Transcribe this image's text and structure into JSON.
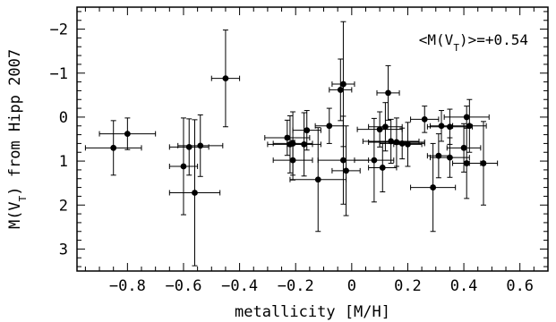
{
  "chart_data": {
    "type": "scatter",
    "xlabel": "metallicity [M/H]",
    "ylabel": "M(V_T) from Hipp 2007",
    "annotation": "<M(V_T)>=+0.54",
    "xlim": [
      -0.98,
      0.7
    ],
    "ylim": [
      3.5,
      -2.5
    ],
    "y_axis_inverted": true,
    "grid": false,
    "x_ticks": [
      -0.8,
      -0.6,
      -0.4,
      -0.2,
      0,
      0.2,
      0.4,
      0.6
    ],
    "x_tick_labels": [
      "−0.8",
      "−0.6",
      "−0.4",
      "−0.2",
      "0",
      "0.2",
      "0.4",
      "0.6"
    ],
    "y_ticks": [
      -2,
      -1,
      0,
      1,
      2,
      3
    ],
    "y_tick_labels": [
      "−2",
      "−1",
      "0",
      "1",
      "2",
      "3"
    ],
    "points": [
      {
        "x": -0.85,
        "y": 0.7,
        "xerr": 0.1,
        "yerr": 0.62
      },
      {
        "x": -0.8,
        "y": 0.38,
        "xerr": 0.1,
        "yerr": 0.36
      },
      {
        "x": -0.6,
        "y": 1.12,
        "xerr": 0.05,
        "yerr": 1.1
      },
      {
        "x": -0.58,
        "y": 0.68,
        "xerr": 0.07,
        "yerr": 0.64
      },
      {
        "x": -0.56,
        "y": 1.72,
        "xerr": 0.09,
        "yerr": 1.66
      },
      {
        "x": -0.54,
        "y": 0.65,
        "xerr": 0.08,
        "yerr": 0.7
      },
      {
        "x": -0.45,
        "y": -0.88,
        "xerr": 0.05,
        "yerr": 1.1
      },
      {
        "x": -0.23,
        "y": 0.47,
        "xerr": 0.08,
        "yerr": 0.4
      },
      {
        "x": -0.22,
        "y": 0.62,
        "xerr": 0.08,
        "yerr": 0.65
      },
      {
        "x": -0.21,
        "y": 0.6,
        "xerr": 0.07,
        "yerr": 0.72
      },
      {
        "x": -0.21,
        "y": 0.98,
        "xerr": 0.07,
        "yerr": 0.45
      },
      {
        "x": -0.17,
        "y": 0.62,
        "xerr": 0.06,
        "yerr": 0.72
      },
      {
        "x": -0.16,
        "y": 0.3,
        "xerr": 0.05,
        "yerr": 0.45
      },
      {
        "x": -0.12,
        "y": 1.42,
        "xerr": 0.1,
        "yerr": 1.18
      },
      {
        "x": -0.08,
        "y": 0.2,
        "xerr": 0.05,
        "yerr": 0.4
      },
      {
        "x": -0.04,
        "y": -0.62,
        "xerr": 0.04,
        "yerr": 0.7
      },
      {
        "x": -0.03,
        "y": -0.75,
        "xerr": 0.04,
        "yerr": 1.42
      },
      {
        "x": -0.03,
        "y": 0.98,
        "xerr": 0.09,
        "yerr": 1.0
      },
      {
        "x": -0.02,
        "y": 1.22,
        "xerr": 0.05,
        "yerr": 1.02
      },
      {
        "x": 0.08,
        "y": 0.98,
        "xerr": 0.07,
        "yerr": 0.95
      },
      {
        "x": 0.1,
        "y": 0.28,
        "xerr": 0.08,
        "yerr": 0.4
      },
      {
        "x": 0.11,
        "y": 1.15,
        "xerr": 0.05,
        "yerr": 0.55
      },
      {
        "x": 0.12,
        "y": 0.22,
        "xerr": 0.06,
        "yerr": 0.55
      },
      {
        "x": 0.13,
        "y": -0.55,
        "xerr": 0.04,
        "yerr": 0.62
      },
      {
        "x": 0.14,
        "y": 0.55,
        "xerr": 0.1,
        "yerr": 0.5
      },
      {
        "x": 0.16,
        "y": 0.57,
        "xerr": 0.1,
        "yerr": 0.55
      },
      {
        "x": 0.18,
        "y": 0.6,
        "xerr": 0.08,
        "yerr": 0.35
      },
      {
        "x": 0.2,
        "y": 0.62,
        "xerr": 0.05,
        "yerr": 0.5
      },
      {
        "x": 0.26,
        "y": 0.05,
        "xerr": 0.05,
        "yerr": 0.3
      },
      {
        "x": 0.29,
        "y": 1.6,
        "xerr": 0.08,
        "yerr": 1.0
      },
      {
        "x": 0.31,
        "y": 0.88,
        "xerr": 0.04,
        "yerr": 0.5
      },
      {
        "x": 0.32,
        "y": 0.2,
        "xerr": 0.04,
        "yerr": 0.35
      },
      {
        "x": 0.35,
        "y": 0.92,
        "xerr": 0.07,
        "yerr": 0.45
      },
      {
        "x": 0.35,
        "y": 0.22,
        "xerr": 0.08,
        "yerr": 0.4
      },
      {
        "x": 0.4,
        "y": 0.7,
        "xerr": 0.06,
        "yerr": 0.55
      },
      {
        "x": 0.41,
        "y": 0.0,
        "xerr": 0.08,
        "yerr": 0.25
      },
      {
        "x": 0.41,
        "y": 1.05,
        "xerr": 0.05,
        "yerr": 0.8
      },
      {
        "x": 0.42,
        "y": 0.2,
        "xerr": 0.06,
        "yerr": 0.6
      },
      {
        "x": 0.47,
        "y": 1.05,
        "xerr": 0.05,
        "yerr": 0.95
      }
    ]
  }
}
